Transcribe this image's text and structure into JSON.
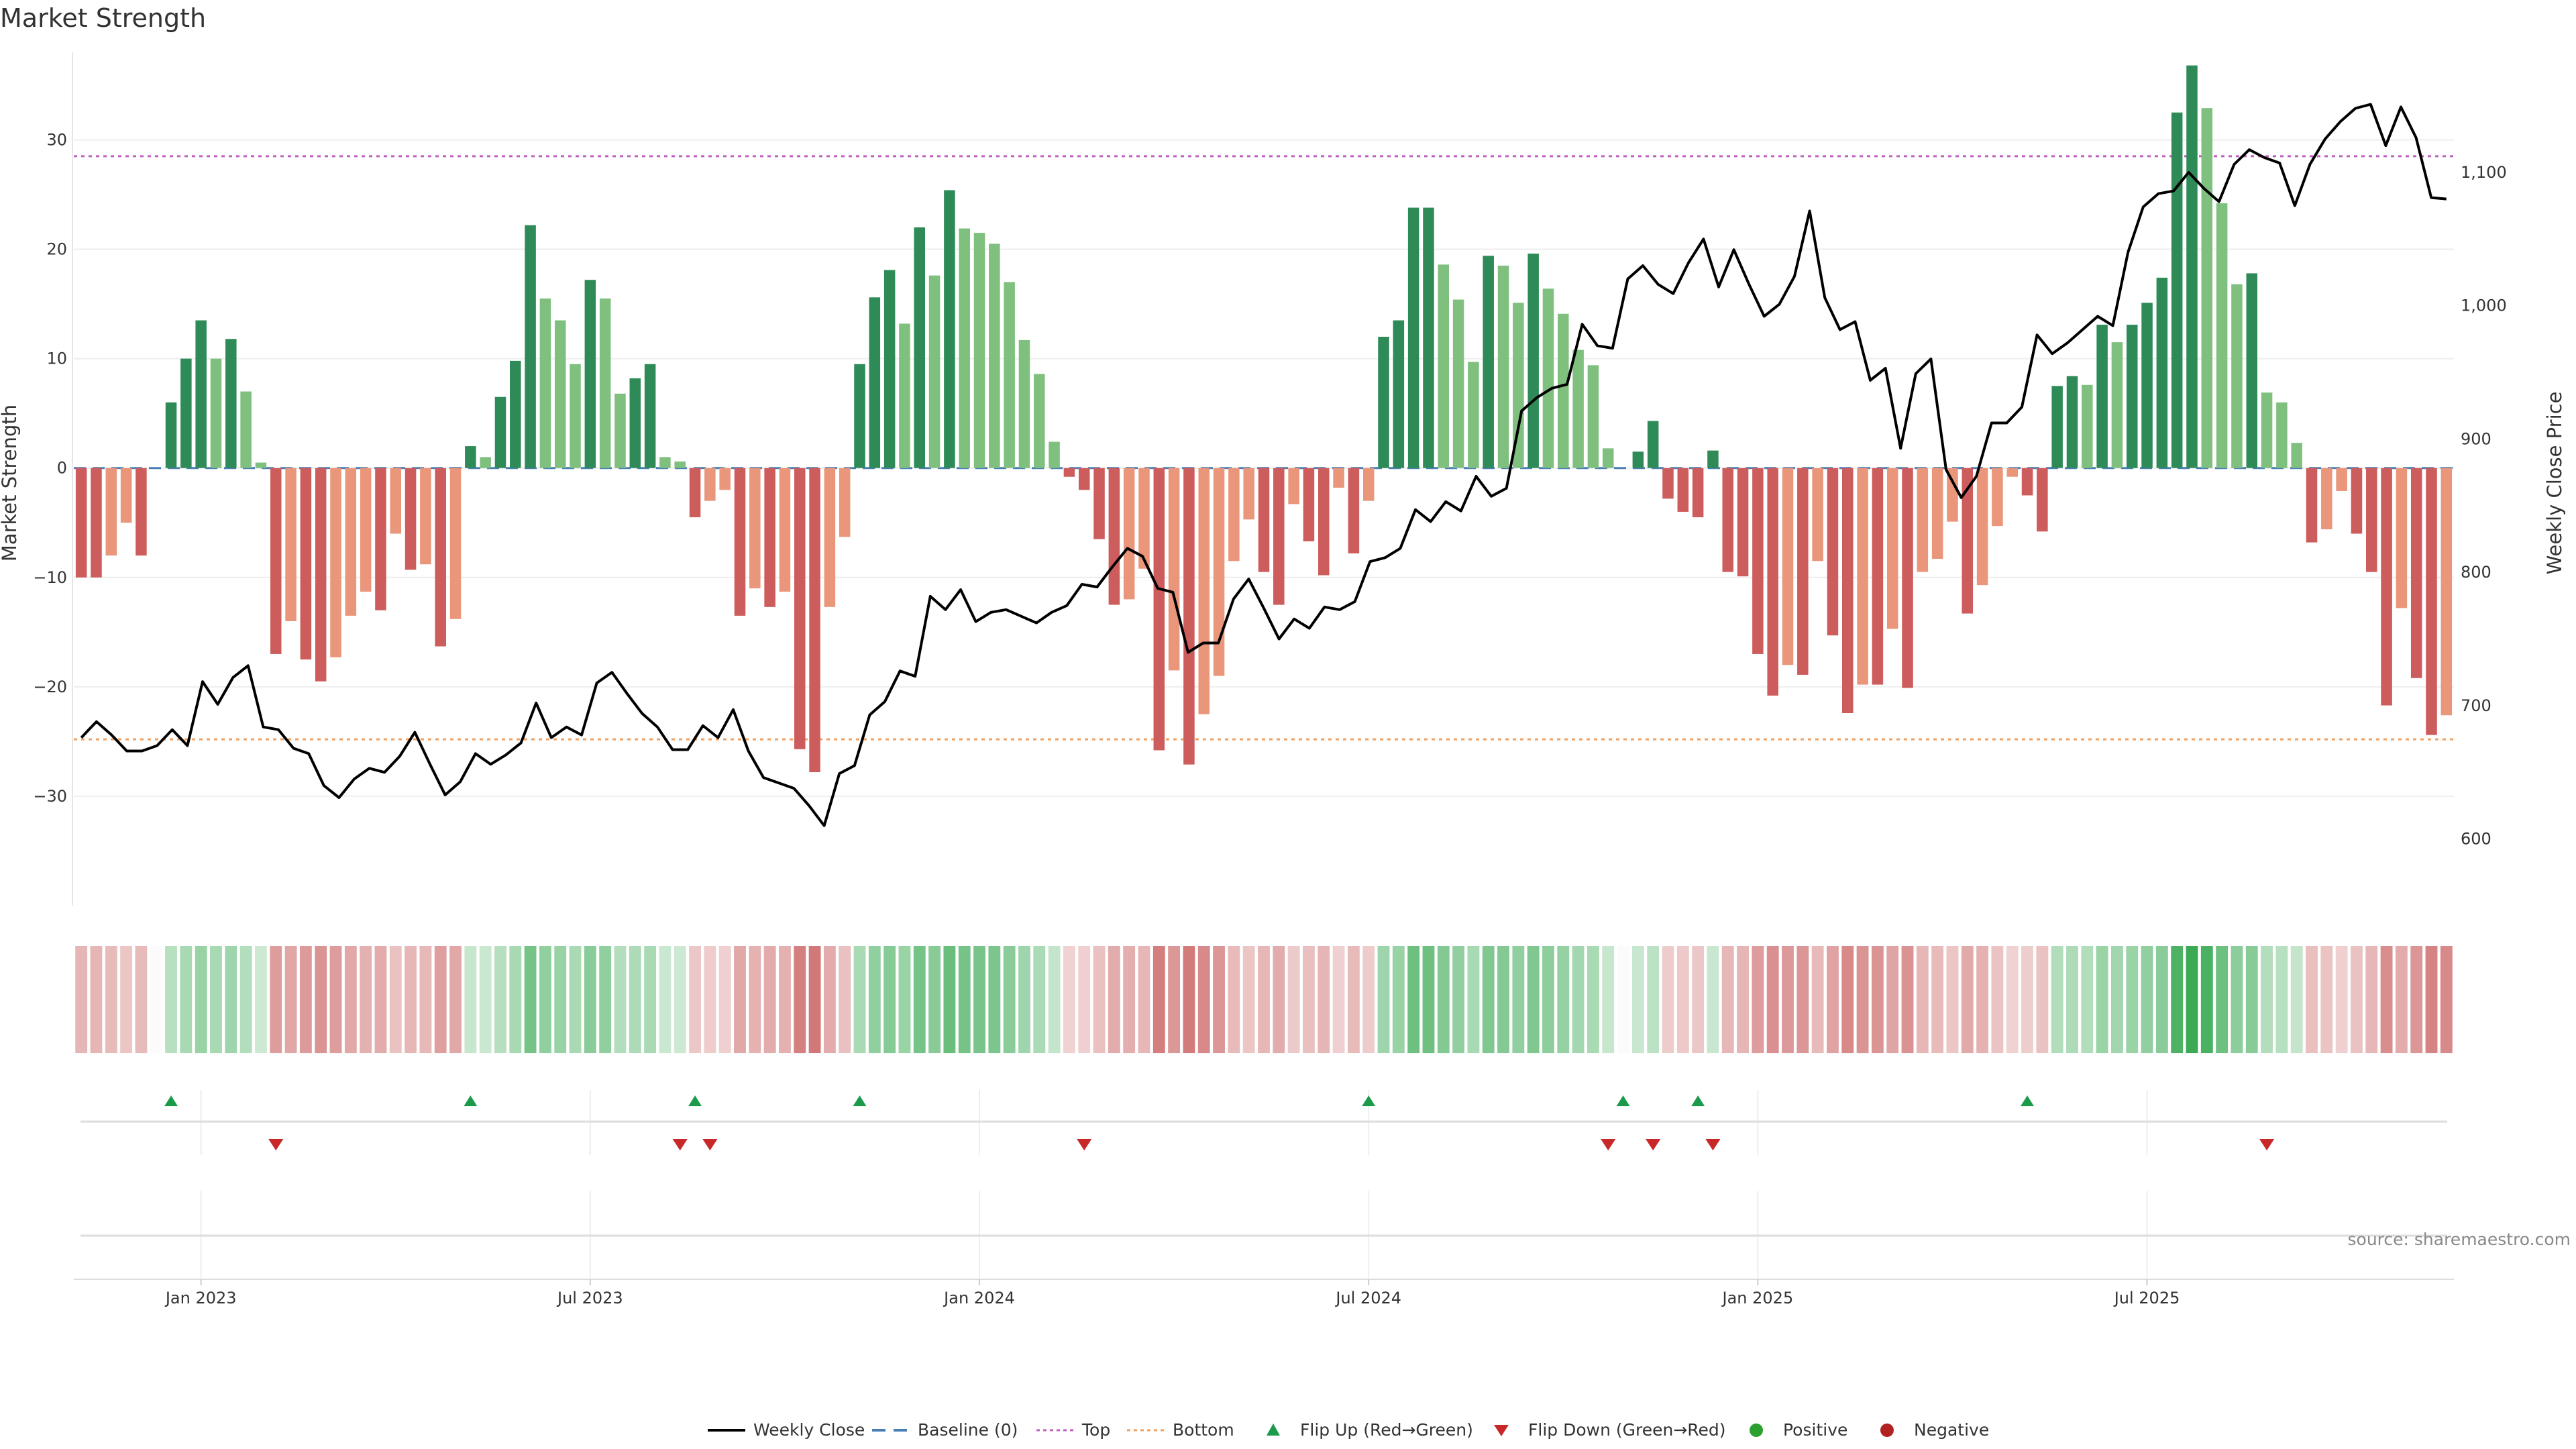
{
  "chart_data": {
    "type": "bar",
    "title": "Market Strength",
    "source": "source: sharemaestro.com",
    "y_left": {
      "label": "Market Strength",
      "ylim": [
        -40,
        38
      ],
      "ticks": [
        -30,
        -20,
        -10,
        0,
        10,
        20,
        30
      ]
    },
    "y_right": {
      "label": "Weekly Close Price",
      "ylim": [
        550,
        1190
      ],
      "ticks": [
        600,
        700,
        800,
        900,
        1000,
        1100
      ],
      "tick_labels": [
        "600",
        "700",
        "800",
        "900",
        "1,000",
        "1,100"
      ]
    },
    "x_ticks": [
      "Jan 2023",
      "Jul 2023",
      "Jan 2024",
      "Jul 2024",
      "Jan 2025",
      "Jul 2025"
    ],
    "x_tick_index": [
      8,
      34,
      60,
      86,
      112,
      138
    ],
    "reference_lines": {
      "baseline": 0,
      "top": 28.5,
      "bottom": -24.8
    },
    "strength": [
      -10,
      -10,
      -8,
      -5,
      -8,
      0,
      6,
      10,
      13.5,
      10,
      11.8,
      7,
      0.5,
      -17,
      -14,
      -17.5,
      -19.5,
      -17.3,
      -13.5,
      -11.3,
      -13,
      -6,
      -9.3,
      -8.8,
      -16.3,
      -13.8,
      2,
      1,
      6.5,
      9.8,
      22.2,
      15.5,
      13.5,
      9.5,
      17.2,
      15.5,
      6.8,
      8.2,
      9.5,
      1,
      0.6,
      -4.5,
      -3,
      -2,
      -13.5,
      -11,
      -12.7,
      -11.3,
      -25.7,
      -27.8,
      -12.7,
      -6.3,
      9.5,
      15.6,
      18.1,
      13.2,
      22,
      17.6,
      25.4,
      21.9,
      21.5,
      20.5,
      17,
      11.7,
      8.6,
      2.4,
      -0.8,
      -2,
      -6.5,
      -12.5,
      -12,
      -9.2,
      -25.8,
      -18.5,
      -27.1,
      -22.5,
      -19,
      -8.5,
      -4.7,
      -9.5,
      -12.5,
      -3.3,
      -6.7,
      -9.8,
      -1.8,
      -7.8,
      -3,
      12,
      13.5,
      23.8,
      23.8,
      18.6,
      15.4,
      9.7,
      19.4,
      18.5,
      15.1,
      19.6,
      16.4,
      14.1,
      10.8,
      9.4,
      1.8,
      0,
      1.5,
      4.3,
      -2.8,
      -4,
      -4.5,
      1.6,
      -9.5,
      -9.9,
      -17,
      -20.8,
      -18,
      -18.9,
      -8.5,
      -15.3,
      -22.4,
      -19.8,
      -19.8,
      -14.7,
      -20.1,
      -9.5,
      -8.3,
      -4.9,
      -13.3,
      -10.7,
      -5.3,
      -0.8,
      -2.5,
      -5.8,
      7.5,
      8.4,
      7.6,
      13.1,
      11.5,
      13.1,
      15.1,
      17.4,
      32.5,
      36.8,
      32.9,
      24.2,
      16.8,
      17.8,
      6.9,
      6,
      2.3,
      -6.8,
      -5.6,
      -2.1,
      -6,
      -9.5,
      -21.7,
      -12.8,
      -19.2,
      -24.4,
      -22.6
    ],
    "weekly_close": [
      676,
      688,
      678,
      666,
      666,
      670,
      682,
      670,
      718,
      701,
      721,
      730,
      684,
      682,
      668,
      664,
      640,
      631,
      645,
      653,
      650,
      662,
      680,
      656,
      633,
      643,
      664,
      656,
      663,
      672,
      702,
      676,
      684,
      678,
      717,
      725,
      709,
      694,
      684,
      667,
      667,
      685,
      676,
      697,
      666,
      646,
      642,
      638,
      625,
      610,
      649,
      655,
      693,
      703,
      726,
      722,
      782,
      772,
      787,
      763,
      770,
      772,
      767,
      762,
      770,
      775,
      791,
      789,
      804,
      818,
      812,
      788,
      785,
      740,
      747,
      747,
      780,
      795,
      773,
      750,
      765,
      758,
      774,
      772,
      778,
      808,
      811,
      818,
      847,
      838,
      853,
      846,
      872,
      857,
      863,
      921,
      931,
      938,
      941,
      986,
      970,
      968,
      1020,
      1030,
      1016,
      1009,
      1032,
      1050,
      1014,
      1042,
      1016,
      992,
      1001,
      1022,
      1071,
      1006,
      982,
      988,
      944,
      953,
      893,
      949,
      960,
      877,
      856,
      872,
      912,
      912,
      924,
      978,
      964,
      972,
      982,
      992,
      985,
      1040,
      1074,
      1084,
      1086,
      1100,
      1088,
      1078,
      1106,
      1117,
      1111,
      1107,
      1075,
      1106,
      1125,
      1138,
      1148,
      1151,
      1120,
      1149,
      1126,
      1081,
      1080
    ],
    "flip_up_index": [
      6,
      26,
      41,
      52,
      86,
      103,
      108,
      130
    ],
    "flip_down_index": [
      13,
      40,
      42,
      67,
      102,
      105,
      109,
      146
    ],
    "legend": [
      "Weekly Close",
      "Baseline (0)",
      "Top",
      "Bottom",
      "Flip Up (Red→Green)",
      "Flip Down (Green→Red)",
      "Positive",
      "Negative"
    ]
  },
  "colors": {
    "pos_strong": "#2e8b57",
    "pos_light": "#7fc07f",
    "neg_strong": "#cd5c5c",
    "neg_light": "#e9967a",
    "close": "#000000",
    "baseline": "#4a7fb5",
    "top": "#c060c0",
    "bottom": "#f0a060",
    "flip_up": "#1a9a4a",
    "flip_down": "#c82828",
    "positive_dot": "#2ca02c",
    "negative_dot": "#b22222"
  }
}
